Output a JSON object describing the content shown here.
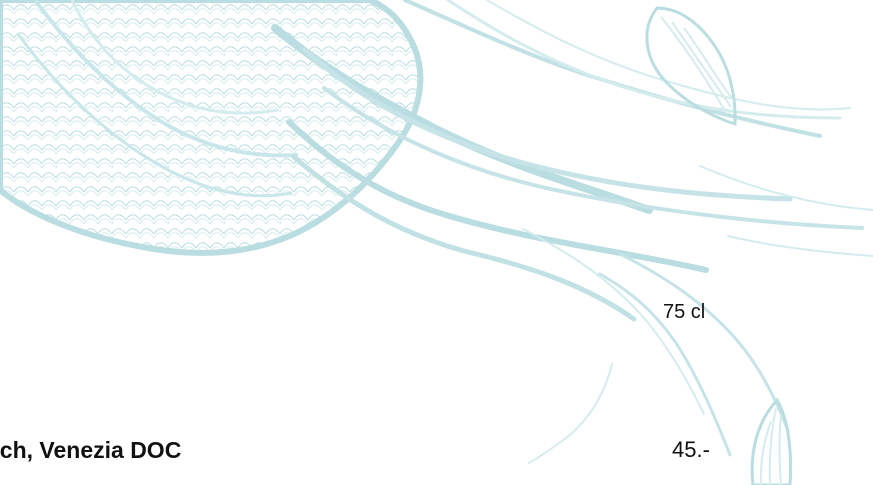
{
  "menu": {
    "watermark": {
      "icon": "jellyfish-illustration",
      "color": "#b9dde0"
    },
    "item": {
      "volume": "75 cl",
      "name": "ech, Venezia DOC",
      "price": "45.-"
    }
  }
}
